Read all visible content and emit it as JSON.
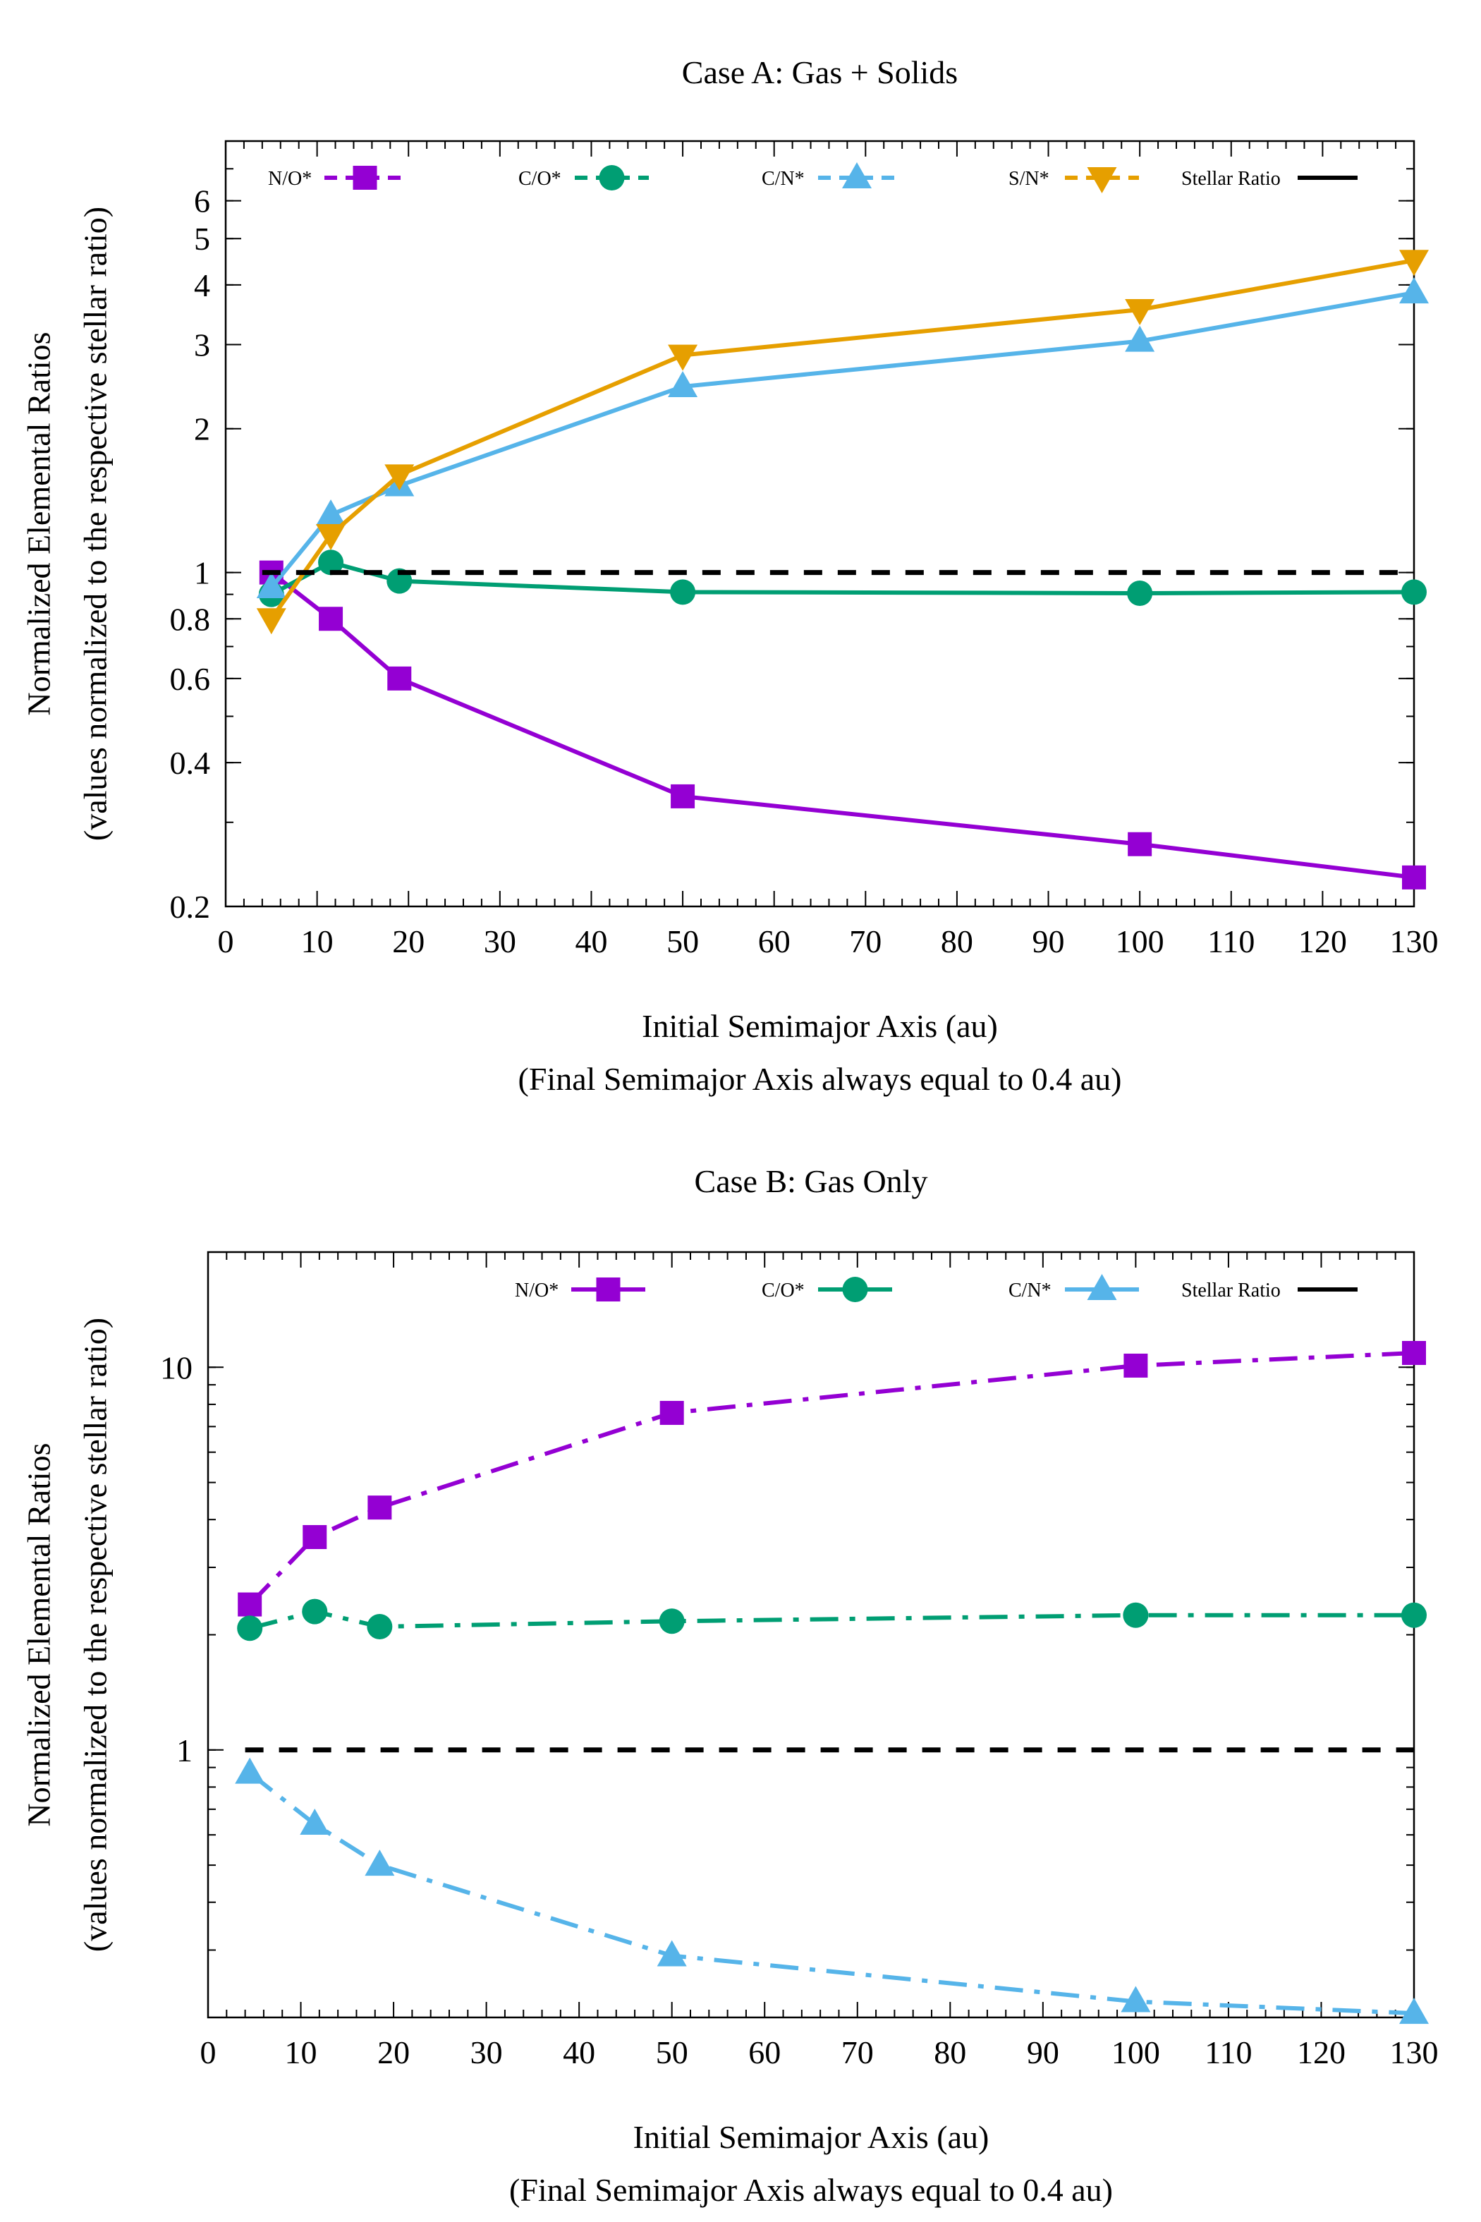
{
  "chart_data": [
    {
      "type": "line",
      "title": "Case A: Gas + Solids",
      "xlabel": "Initial Semimajor Axis (au)",
      "xlabel2": "(Final Semimajor Axis always equal to 0.4 au)",
      "ylabel": "Normalized Elemental Ratios",
      "ylabel2": "(values normalized to the respective stellar ratio)",
      "xlim": [
        0,
        130
      ],
      "ylim": [
        0.2,
        8
      ],
      "yscale": "log",
      "xticks": [
        "0",
        "10",
        "20",
        "30",
        "40",
        "50",
        "60",
        "70",
        "80",
        "90",
        "100",
        "110",
        "120",
        "130"
      ],
      "yticks": [
        {
          "v": 0.2,
          "label": "0.2"
        },
        {
          "v": 0.4,
          "label": "0.4"
        },
        {
          "v": 0.6,
          "label": "0.6"
        },
        {
          "v": 0.8,
          "label": "0.8"
        },
        {
          "v": 1,
          "label": "1"
        },
        {
          "v": 2,
          "label": "2"
        },
        {
          "v": 3,
          "label": "3"
        },
        {
          "v": 4,
          "label": "4"
        },
        {
          "v": 5,
          "label": "5"
        },
        {
          "v": 6,
          "label": "6"
        }
      ],
      "legend_position": "top",
      "series": [
        {
          "name": "N/O*",
          "color": "#9400d3",
          "marker": "square",
          "dash": "solid",
          "x": [
            5,
            11.5,
            19,
            50,
            100,
            130
          ],
          "y": [
            1.0,
            0.8,
            0.6,
            0.34,
            0.27,
            0.23
          ]
        },
        {
          "name": "C/O*",
          "color": "#009e73",
          "marker": "circle",
          "dash": "solid",
          "x": [
            5,
            11.5,
            19,
            50,
            100,
            130
          ],
          "y": [
            0.9,
            1.05,
            0.96,
            0.91,
            0.905,
            0.91
          ]
        },
        {
          "name": "C/N*",
          "color": "#56b4e9",
          "marker": "triangle-up",
          "dash": "solid",
          "x": [
            5,
            11.5,
            19,
            50,
            100,
            130
          ],
          "y": [
            0.93,
            1.32,
            1.52,
            2.45,
            3.05,
            3.85
          ]
        },
        {
          "name": "S/N*",
          "color": "#e69f00",
          "marker": "triangle-down",
          "dash": "solid",
          "x": [
            5,
            11.5,
            19,
            50,
            100,
            130
          ],
          "y": [
            0.8,
            1.2,
            1.6,
            2.85,
            3.55,
            4.5
          ]
        },
        {
          "name": "Stellar Ratio",
          "color": "#000000",
          "marker": "none",
          "dash": "dashed",
          "x": [
            4,
            130
          ],
          "y": [
            1,
            1
          ]
        }
      ]
    },
    {
      "type": "line",
      "title": "Case B: Gas Only",
      "xlabel": "Initial Semimajor Axis (au)",
      "xlabel2": "(Final Semimajor Axis always equal to 0.4 au)",
      "ylabel": "Normalized Elemental Ratios",
      "ylabel2": "(values normalized to the respective stellar ratio)",
      "xlim": [
        0,
        130
      ],
      "ylim": [
        0.2,
        20
      ],
      "yscale": "log",
      "xticks": [
        "0",
        "10",
        "20",
        "30",
        "40",
        "50",
        "60",
        "70",
        "80",
        "90",
        "100",
        "110",
        "120",
        "130"
      ],
      "yticks": [
        {
          "v": 1,
          "label": "1"
        },
        {
          "v": 10,
          "label": "10"
        }
      ],
      "legend_position": "top",
      "series": [
        {
          "name": "N/O*",
          "color": "#9400d3",
          "marker": "square",
          "dash": "dashdot",
          "x": [
            4.5,
            11.5,
            18.5,
            50,
            100,
            130
          ],
          "y": [
            2.4,
            3.6,
            4.3,
            7.6,
            10.1,
            10.9
          ]
        },
        {
          "name": "C/O*",
          "color": "#009e73",
          "marker": "circle",
          "dash": "dashdot",
          "x": [
            4.5,
            11.5,
            18.5,
            50,
            100,
            130
          ],
          "y": [
            2.08,
            2.3,
            2.1,
            2.17,
            2.25,
            2.25
          ]
        },
        {
          "name": "C/N*",
          "color": "#56b4e9",
          "marker": "triangle-up",
          "dash": "dashdot",
          "x": [
            4.5,
            11.5,
            18.5,
            50,
            100,
            130
          ],
          "y": [
            0.87,
            0.64,
            0.5,
            0.29,
            0.22,
            0.205
          ]
        },
        {
          "name": "Stellar Ratio",
          "color": "#000000",
          "marker": "none",
          "dash": "dashed",
          "x": [
            4,
            130
          ],
          "y": [
            1,
            1
          ]
        }
      ]
    }
  ]
}
